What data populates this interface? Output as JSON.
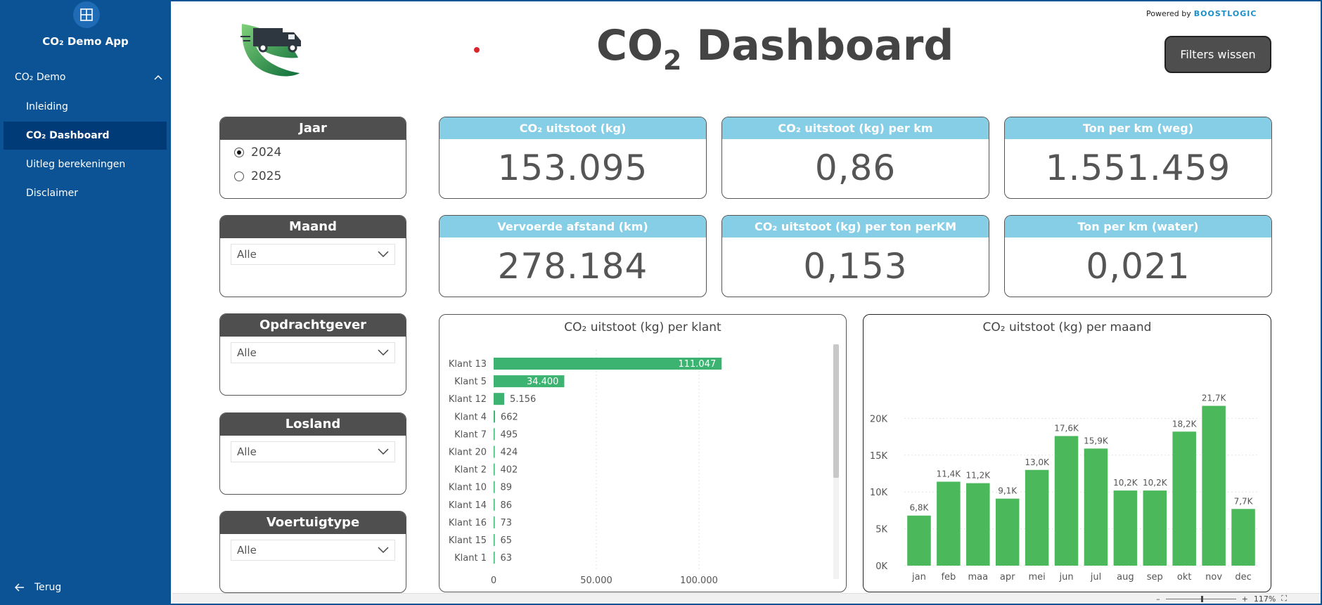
{
  "sidebar": {
    "app_title": "CO₂ Demo App",
    "section_label": "CO₂ Demo",
    "items": [
      {
        "label": "Inleiding",
        "active": false
      },
      {
        "label": "CO₂ Dashboard",
        "active": true
      },
      {
        "label": "Uitleg berekeningen",
        "active": false
      },
      {
        "label": "Disclaimer",
        "active": false
      }
    ],
    "back_label": "Terug"
  },
  "header": {
    "title_main": "CO",
    "title_sub": "2",
    "title_rest": " Dashboard",
    "powered_by": "Powered by",
    "powered_brand": "BOOSTLOGIC",
    "clear_filters": "Filters wissen"
  },
  "slicers": {
    "year": {
      "title": "Jaar",
      "options": [
        {
          "label": "2024",
          "selected": true
        },
        {
          "label": "2025",
          "selected": false
        }
      ]
    },
    "month": {
      "title": "Maand",
      "value": "Alle"
    },
    "client": {
      "title": "Opdrachtgever",
      "value": "Alle"
    },
    "country": {
      "title": "Losland",
      "value": "Alle"
    },
    "vehicle": {
      "title": "Voertuigtype",
      "value": "Alle"
    }
  },
  "kpis": [
    {
      "label": "CO₂ uitstoot (kg)",
      "value": "153.095"
    },
    {
      "label": "CO₂ uitstoot (kg) per km",
      "value": "0,86"
    },
    {
      "label": "Ton per km (weg)",
      "value": "1.551.459"
    },
    {
      "label": "Vervoerde afstand (km)",
      "value": "278.184"
    },
    {
      "label": "CO₂ uitstoot (kg) per ton perKM",
      "value": "0,153"
    },
    {
      "label": "Ton per km (water)",
      "value": "0,021"
    }
  ],
  "status": {
    "zoom": "117%"
  },
  "colors": {
    "sidebar": "#0b5394",
    "kpi_header": "#86cde6",
    "bar_client": "#3cb371",
    "bar_month": "#4cb85c",
    "slicer_header": "#4f4f4f"
  },
  "chart_data": [
    {
      "type": "bar",
      "orientation": "horizontal",
      "title": "CO₂ uitstoot (kg) per klant",
      "categories": [
        "Klant 13",
        "Klant 5",
        "Klant 12",
        "Klant 4",
        "Klant 7",
        "Klant 20",
        "Klant 2",
        "Klant 10",
        "Klant 14",
        "Klant 16",
        "Klant 15",
        "Klant 1"
      ],
      "values": [
        111047,
        34400,
        5156,
        662,
        495,
        424,
        402,
        89,
        86,
        73,
        65,
        63
      ],
      "value_labels": [
        "111.047",
        "34.400",
        "5.156",
        "662",
        "495",
        "424",
        "402",
        "89",
        "86",
        "73",
        "65",
        "63"
      ],
      "xlim": [
        0,
        125000
      ],
      "xticks": [
        0,
        50000,
        100000
      ],
      "xtick_labels": [
        "0",
        "50.000",
        "100.000"
      ],
      "grid": true
    },
    {
      "type": "bar",
      "title": "CO₂ uitstoot (kg) per maand",
      "categories": [
        "jan",
        "feb",
        "maa",
        "apr",
        "mei",
        "jun",
        "jul",
        "aug",
        "sep",
        "okt",
        "nov",
        "dec"
      ],
      "values": [
        6800,
        11400,
        11200,
        9100,
        13000,
        17600,
        15900,
        10200,
        10200,
        18200,
        21700,
        7700
      ],
      "value_labels": [
        "6,8K",
        "11,4K",
        "11,2K",
        "9,1K",
        "13,0K",
        "17,6K",
        "15,9K",
        "10,2K",
        "10,2K",
        "18,2K",
        "21,7K",
        "7,7K"
      ],
      "ylim": [
        0,
        25000
      ],
      "yticks": [
        0,
        5000,
        10000,
        15000,
        20000
      ],
      "ytick_labels": [
        "0K",
        "5K",
        "10K",
        "15K",
        "20K"
      ],
      "grid": true
    }
  ]
}
